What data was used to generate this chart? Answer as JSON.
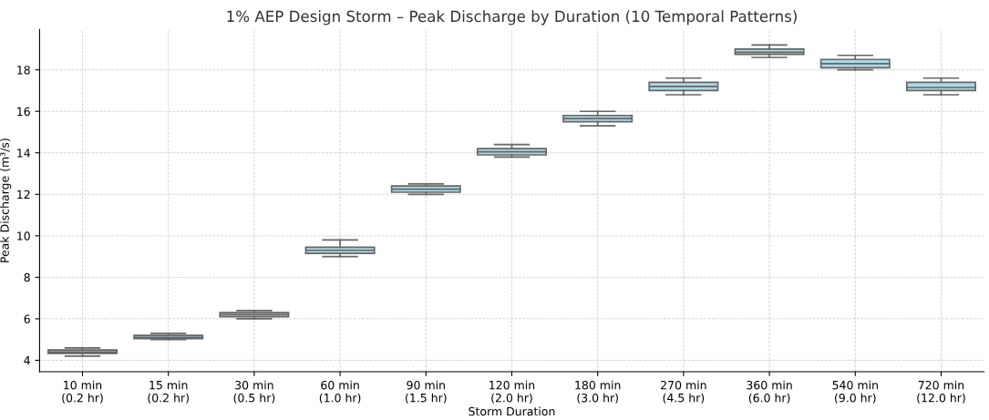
{
  "chart_data": {
    "type": "box",
    "title": "1% AEP Design Storm – Peak Discharge by Duration (10 Temporal Patterns)",
    "xlabel": "Storm Duration",
    "ylabel": "Peak Discharge (m³/s)",
    "categories": [
      "10 min\n(0.2 hr)",
      "15 min\n(0.2 hr)",
      "30 min\n(0.5 hr)",
      "60 min\n(1.0 hr)",
      "90 min\n(1.5 hr)",
      "120 min\n(2.0 hr)",
      "180 min\n(3.0 hr)",
      "270 min\n(4.5 hr)",
      "360 min\n(6.0 hr)",
      "540 min\n(9.0 hr)",
      "720 min\n(12.0 hr)"
    ],
    "color": "#add8e6",
    "boxes": [
      {
        "low": 4.2,
        "q1": 4.33,
        "median": 4.4,
        "q3": 4.5,
        "high": 4.6
      },
      {
        "low": 5.0,
        "q1": 5.05,
        "median": 5.1,
        "q3": 5.2,
        "high": 5.3
      },
      {
        "low": 6.0,
        "q1": 6.1,
        "median": 6.2,
        "q3": 6.3,
        "high": 6.4
      },
      {
        "low": 9.0,
        "q1": 9.15,
        "median": 9.3,
        "q3": 9.45,
        "high": 9.8
      },
      {
        "low": 12.0,
        "q1": 12.1,
        "median": 12.25,
        "q3": 12.4,
        "high": 12.5
      },
      {
        "low": 13.8,
        "q1": 13.9,
        "median": 14.05,
        "q3": 14.2,
        "high": 14.4
      },
      {
        "low": 15.3,
        "q1": 15.5,
        "median": 15.65,
        "q3": 15.8,
        "high": 16.0
      },
      {
        "low": 16.8,
        "q1": 17.0,
        "median": 17.2,
        "q3": 17.4,
        "high": 17.6
      },
      {
        "low": 18.6,
        "q1": 18.75,
        "median": 18.85,
        "q3": 19.0,
        "high": 19.2
      },
      {
        "low": 18.0,
        "q1": 18.1,
        "median": 18.3,
        "q3": 18.5,
        "high": 18.7
      },
      {
        "low": 16.8,
        "q1": 17.0,
        "median": 17.15,
        "q3": 17.4,
        "high": 17.6
      }
    ],
    "ylim": [
      3.45,
      19.95
    ],
    "yticks": [
      4,
      6,
      8,
      10,
      12,
      14,
      16,
      18
    ],
    "grid": true
  }
}
